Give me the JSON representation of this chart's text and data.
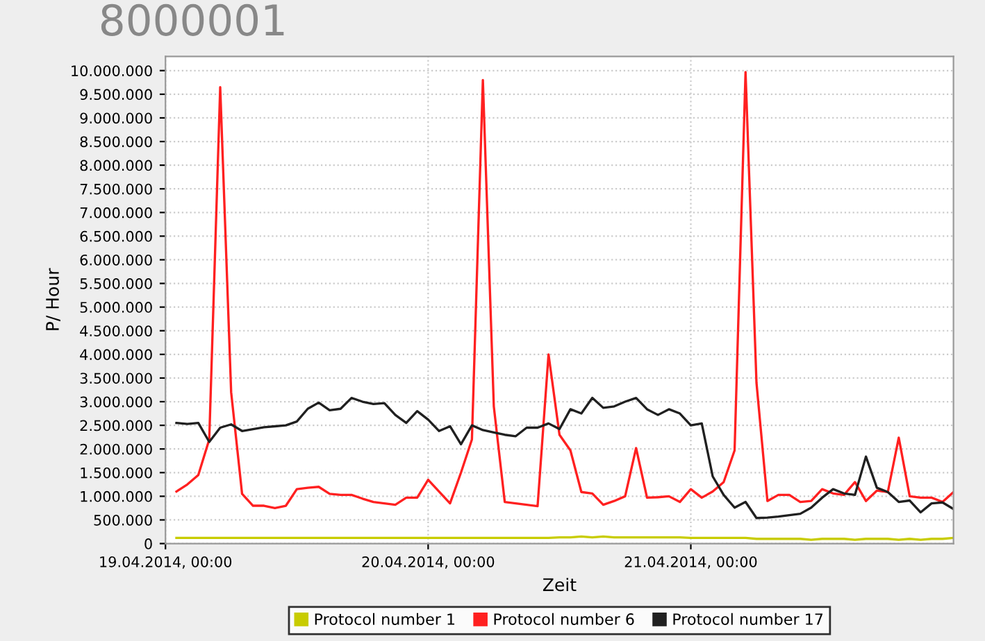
{
  "chart_data": {
    "type": "line",
    "xlabel": "Zeit",
    "ylabel": "P/ Hour",
    "annotations": [
      "8000001"
    ],
    "x": [
      "2014-04-19T01:00",
      "2014-04-19T02:00",
      "2014-04-19T03:00",
      "2014-04-19T04:00",
      "2014-04-19T05:00",
      "2014-04-19T06:00",
      "2014-04-19T07:00",
      "2014-04-19T08:00",
      "2014-04-19T09:00",
      "2014-04-19T10:00",
      "2014-04-19T11:00",
      "2014-04-19T12:00",
      "2014-04-19T13:00",
      "2014-04-19T14:00",
      "2014-04-19T15:00",
      "2014-04-19T16:00",
      "2014-04-19T17:00",
      "2014-04-19T18:00",
      "2014-04-19T19:00",
      "2014-04-19T20:00",
      "2014-04-19T21:00",
      "2014-04-19T22:00",
      "2014-04-19T23:00",
      "2014-04-20T00:00",
      "2014-04-20T01:00",
      "2014-04-20T02:00",
      "2014-04-20T03:00",
      "2014-04-20T04:00",
      "2014-04-20T05:00",
      "2014-04-20T06:00",
      "2014-04-20T07:00",
      "2014-04-20T08:00",
      "2014-04-20T09:00",
      "2014-04-20T10:00",
      "2014-04-20T11:00",
      "2014-04-20T12:00",
      "2014-04-20T13:00",
      "2014-04-20T14:00",
      "2014-04-20T15:00",
      "2014-04-20T16:00",
      "2014-04-20T17:00",
      "2014-04-20T18:00",
      "2014-04-20T19:00",
      "2014-04-20T20:00",
      "2014-04-20T21:00",
      "2014-04-20T22:00",
      "2014-04-20T23:00",
      "2014-04-21T00:00",
      "2014-04-21T01:00",
      "2014-04-21T02:00",
      "2014-04-21T03:00",
      "2014-04-21T04:00",
      "2014-04-21T05:00",
      "2014-04-21T06:00",
      "2014-04-21T07:00",
      "2014-04-21T08:00",
      "2014-04-21T09:00",
      "2014-04-21T10:00",
      "2014-04-21T11:00",
      "2014-04-21T12:00",
      "2014-04-21T13:00",
      "2014-04-21T14:00",
      "2014-04-21T15:00",
      "2014-04-21T16:00",
      "2014-04-21T17:00",
      "2014-04-21T18:00",
      "2014-04-21T19:00",
      "2014-04-21T20:00",
      "2014-04-21T21:00",
      "2014-04-21T22:00",
      "2014-04-21T23:00",
      "2014-04-22T00:00"
    ],
    "series": [
      {
        "name": "Protocol number 1",
        "color": "#c8cc00",
        "values": [
          120000,
          120000,
          120000,
          120000,
          120000,
          120000,
          120000,
          120000,
          120000,
          120000,
          120000,
          120000,
          120000,
          120000,
          120000,
          120000,
          120000,
          120000,
          120000,
          120000,
          120000,
          120000,
          120000,
          120000,
          120000,
          120000,
          120000,
          120000,
          120000,
          120000,
          120000,
          120000,
          120000,
          120000,
          120000,
          130000,
          130000,
          150000,
          130000,
          150000,
          130000,
          130000,
          130000,
          130000,
          130000,
          130000,
          130000,
          120000,
          120000,
          120000,
          120000,
          120000,
          120000,
          100000,
          100000,
          100000,
          100000,
          100000,
          80000,
          100000,
          100000,
          100000,
          80000,
          100000,
          100000,
          100000,
          80000,
          100000,
          80000,
          100000,
          100000,
          120000
        ]
      },
      {
        "name": "Protocol number 6",
        "color": "#ff2020",
        "values": [
          1100000,
          1250000,
          1450000,
          2200000,
          9650000,
          3200000,
          1050000,
          800000,
          800000,
          750000,
          800000,
          1150000,
          1180000,
          1200000,
          1050000,
          1030000,
          1030000,
          950000,
          880000,
          850000,
          820000,
          970000,
          970000,
          1350000,
          1100000,
          850000,
          1500000,
          2200000,
          9800000,
          2900000,
          880000,
          850000,
          820000,
          790000,
          4000000,
          2300000,
          1970000,
          1090000,
          1060000,
          820000,
          900000,
          1000000,
          2020000,
          970000,
          980000,
          1000000,
          880000,
          1150000,
          970000,
          1100000,
          1300000,
          1970000,
          9970000,
          3400000,
          900000,
          1030000,
          1030000,
          880000,
          900000,
          1150000,
          1060000,
          1030000,
          1300000,
          900000,
          1120000,
          1090000,
          2240000,
          1000000,
          970000,
          970000,
          880000,
          1090000
        ]
      },
      {
        "name": "Protocol number 17",
        "color": "#202020",
        "values": [
          2550000,
          2530000,
          2550000,
          2150000,
          2450000,
          2520000,
          2380000,
          2420000,
          2460000,
          2480000,
          2500000,
          2580000,
          2850000,
          2980000,
          2820000,
          2850000,
          3080000,
          3000000,
          2950000,
          2970000,
          2720000,
          2550000,
          2800000,
          2620000,
          2380000,
          2480000,
          2100000,
          2500000,
          2400000,
          2350000,
          2300000,
          2270000,
          2450000,
          2450000,
          2540000,
          2420000,
          2840000,
          2750000,
          3080000,
          2870000,
          2900000,
          3000000,
          3080000,
          2840000,
          2720000,
          2840000,
          2750000,
          2500000,
          2540000,
          1420000,
          1030000,
          760000,
          880000,
          540000,
          550000,
          570000,
          600000,
          630000,
          760000,
          970000,
          1150000,
          1060000,
          1030000,
          1840000,
          1180000,
          1090000,
          880000,
          910000,
          660000,
          850000,
          870000,
          730000
        ]
      }
    ],
    "xlim": [
      "2014-04-19T00:00",
      "2014-04-22T00:00"
    ],
    "xticks": [
      {
        "value": "2014-04-19T00:00",
        "label": "19.04.2014, 00:00"
      },
      {
        "value": "2014-04-20T00:00",
        "label": "20.04.2014, 00:00"
      },
      {
        "value": "2014-04-21T00:00",
        "label": "21.04.2014, 00:00"
      }
    ],
    "ylim": [
      0,
      10300000
    ],
    "yticks": [
      0,
      {
        "value": 500000,
        "label": "500.000"
      },
      {
        "value": 1000000,
        "label": "1.000.000"
      },
      {
        "value": 1500000,
        "label": "1.500.000"
      },
      {
        "value": 2000000,
        "label": "2.000.000"
      },
      {
        "value": 2500000,
        "label": "2.500.000"
      },
      {
        "value": 3000000,
        "label": "3.000.000"
      },
      {
        "value": 3500000,
        "label": "3.500.000"
      },
      {
        "value": 4000000,
        "label": "4.000.000"
      },
      {
        "value": 4500000,
        "label": "4.500.000"
      },
      {
        "value": 5000000,
        "label": "5.000.000"
      },
      {
        "value": 5500000,
        "label": "5.500.000"
      },
      {
        "value": 6000000,
        "label": "6.000.000"
      },
      {
        "value": 6500000,
        "label": "6.500.000"
      },
      {
        "value": 7000000,
        "label": "7.000.000"
      },
      {
        "value": 7500000,
        "label": "7.500.000"
      },
      {
        "value": 8000000,
        "label": "8.000.000"
      },
      {
        "value": 8500000,
        "label": "8.500.000"
      },
      {
        "value": 9000000,
        "label": "9.000.000"
      },
      {
        "value": 9500000,
        "label": "9.500.000"
      },
      {
        "value": 10000000,
        "label": "10.000.000"
      }
    ],
    "grid": true,
    "legend": "bottom",
    "marker": "none",
    "line_style": "solid"
  }
}
